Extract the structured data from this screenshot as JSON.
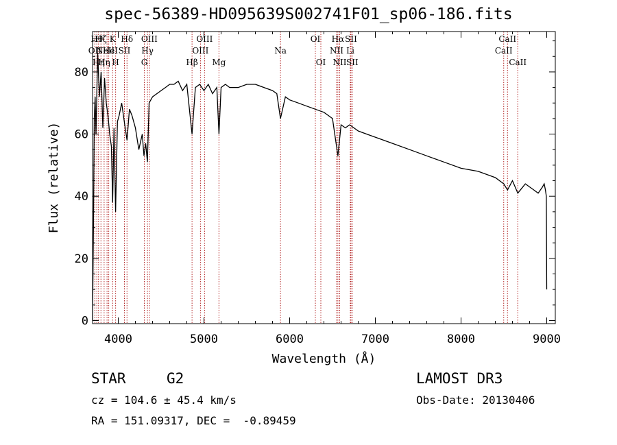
{
  "title": "spec-56389-HD095639S002741F01_sp06-186.fits",
  "info": {
    "object_class": "STAR",
    "subclass": "G2",
    "survey": "LAMOST DR3",
    "redshift": "cz = 104.6 ± 45.4 km/s",
    "obs_date": "Obs-Date: 20130406",
    "coords": "RA = 151.09317, DEC =  -0.89459"
  },
  "chart_data": {
    "type": "line",
    "xlabel": "Wavelength (Å)",
    "ylabel": "Flux (relative)",
    "xlim": [
      3700,
      9100
    ],
    "ylim": [
      -1,
      93
    ],
    "xticks": [
      4000,
      5000,
      6000,
      7000,
      8000,
      9000
    ],
    "yticks": [
      0,
      20,
      40,
      60,
      80
    ],
    "grid": false,
    "series": [
      {
        "color": "#000000",
        "x": [
          3700,
          3710,
          3720,
          3730,
          3740,
          3760,
          3780,
          3800,
          3820,
          3840,
          3860,
          3880,
          3900,
          3920,
          3934,
          3950,
          3969,
          3990,
          4010,
          4040,
          4070,
          4102,
          4130,
          4160,
          4200,
          4240,
          4280,
          4300,
          4320,
          4340,
          4360,
          4400,
          4450,
          4500,
          4550,
          4600,
          4650,
          4700,
          4750,
          4800,
          4861,
          4900,
          4950,
          5000,
          5050,
          5100,
          5150,
          5175,
          5200,
          5250,
          5300,
          5400,
          5500,
          5600,
          5700,
          5800,
          5850,
          5893,
          5950,
          6000,
          6100,
          6200,
          6300,
          6400,
          6450,
          6500,
          6563,
          6600,
          6650,
          6700,
          6800,
          6900,
          7000,
          7200,
          7400,
          7600,
          7800,
          8000,
          8200,
          8400,
          8498,
          8542,
          8600,
          8662,
          8750,
          8800,
          8850,
          8900,
          8950,
          8970,
          8985,
          8995,
          9000
        ],
        "values": [
          0,
          30,
          65,
          72,
          60,
          86,
          72,
          80,
          62,
          78,
          70,
          66,
          60,
          56,
          38,
          62,
          35,
          64,
          66,
          70,
          64,
          58,
          68,
          66,
          62,
          55,
          60,
          53,
          57,
          51,
          70,
          72,
          73,
          74,
          75,
          76,
          76,
          77,
          74,
          76,
          60,
          75,
          76,
          74,
          76,
          73,
          75,
          60,
          75,
          76,
          75,
          75,
          76,
          76,
          75,
          74,
          73,
          65,
          72,
          71,
          70,
          69,
          68,
          67,
          66,
          65,
          53,
          63,
          62,
          63,
          61,
          60,
          59,
          57,
          55,
          53,
          51,
          49,
          48,
          46,
          44,
          42,
          45,
          41,
          44,
          43,
          42,
          41,
          43,
          44,
          42,
          40,
          10
        ]
      }
    ],
    "lines": [
      {
        "w": 3727,
        "label": "OII",
        "row": 1
      },
      {
        "w": 3750,
        "label": "Hθ",
        "row": 0
      },
      {
        "w": 3770,
        "label": "Hη",
        "row": 2
      },
      {
        "w": 3798,
        "label": "Hζ",
        "row": 0
      },
      {
        "w": 3835,
        "label": "Hη",
        "row": 2
      },
      {
        "w": 3869,
        "label": "NeIII",
        "row": 1
      },
      {
        "w": 3889,
        "label": "He",
        "row": 1
      },
      {
        "w": 3934,
        "label": "K",
        "row": 0
      },
      {
        "w": 3969,
        "label": "H",
        "row": 2
      },
      {
        "w": 4072,
        "label": "SII",
        "row": 1
      },
      {
        "w": 4102,
        "label": "Hδ",
        "row": 0
      },
      {
        "w": 4304,
        "label": "G",
        "row": 2
      },
      {
        "w": 4341,
        "label": "Hγ",
        "row": 1
      },
      {
        "w": 4363,
        "label": "OIII",
        "row": 0
      },
      {
        "w": 4861,
        "label": "Hβ",
        "row": 2
      },
      {
        "w": 4959,
        "label": "OIII",
        "row": 1
      },
      {
        "w": 5007,
        "label": "OIII",
        "row": 0
      },
      {
        "w": 5175,
        "label": "Mg",
        "row": 2
      },
      {
        "w": 5893,
        "label": "Na",
        "row": 1
      },
      {
        "w": 6300,
        "label": "OI",
        "row": 0
      },
      {
        "w": 6364,
        "label": "OI",
        "row": 2
      },
      {
        "w": 6548,
        "label": "NII",
        "row": 1
      },
      {
        "w": 6563,
        "label": "Hα",
        "row": 0
      },
      {
        "w": 6584,
        "label": "NII",
        "row": 2
      },
      {
        "w": 6708,
        "label": "Li",
        "row": 1
      },
      {
        "w": 6716,
        "label": "SII",
        "row": 0
      },
      {
        "w": 6731,
        "label": "SII",
        "row": 2
      },
      {
        "w": 8498,
        "label": "CaII",
        "row": 1
      },
      {
        "w": 8542,
        "label": "CaII",
        "row": 0
      },
      {
        "w": 8662,
        "label": "CaII",
        "row": 2
      }
    ]
  }
}
